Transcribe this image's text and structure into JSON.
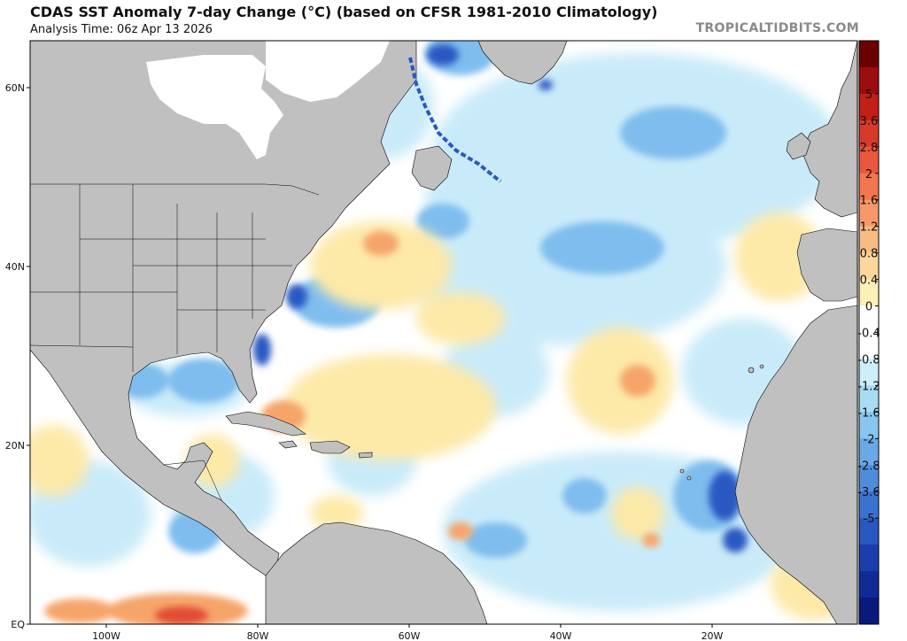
{
  "header": {
    "title": "CDAS SST Anomaly 7-day Change (°C) (based on CFSR 1981-2010 Climatology)",
    "analysis_time": "Analysis Time: 06z Apr 13 2026",
    "brand": "TROPICALTIDBITS.COM"
  },
  "axes": {
    "lat_labels": [
      {
        "text": "60N",
        "lat": 60
      },
      {
        "text": "40N",
        "lat": 40
      },
      {
        "text": "20N",
        "lat": 20
      },
      {
        "text": "EQ",
        "lat": 0
      }
    ],
    "lon_labels": [
      {
        "text": "100W",
        "lon": -100
      },
      {
        "text": "80W",
        "lon": -80
      },
      {
        "text": "60W",
        "lon": -60
      },
      {
        "text": "40W",
        "lon": -40
      },
      {
        "text": "20W",
        "lon": -20
      }
    ]
  },
  "colorbar": {
    "label_values": [
      "5",
      "3.6",
      "2.8",
      "2",
      "1.6",
      "1.2",
      "0.8",
      "0.4",
      "0",
      "-0.4",
      "-0.8",
      "-1.2",
      "-1.6",
      "-2",
      "-2.8",
      "-3.6",
      "-5"
    ],
    "bins": [
      {
        "color": "#6b0000"
      },
      {
        "color": "#9c0d0d"
      },
      {
        "color": "#c21f17"
      },
      {
        "color": "#d73a2b"
      },
      {
        "color": "#e9573f"
      },
      {
        "color": "#f2774f"
      },
      {
        "color": "#f6986a"
      },
      {
        "color": "#f9bb84"
      },
      {
        "color": "#fbd79c"
      },
      {
        "color": "#fdf0b6"
      },
      {
        "color": "#ffffff"
      },
      {
        "color": "#ffffff"
      },
      {
        "color": "#cdeefb"
      },
      {
        "color": "#a9dbf5"
      },
      {
        "color": "#88c5ef"
      },
      {
        "color": "#6aa9e6"
      },
      {
        "color": "#4f8ddb"
      },
      {
        "color": "#3a72d0"
      },
      {
        "color": "#2858c0"
      },
      {
        "color": "#1a3fac"
      },
      {
        "color": "#102b96"
      },
      {
        "color": "#091a7c"
      }
    ]
  },
  "colors": {
    "land": "#c0c0c0",
    "ice": "#ffffff",
    "ocean": "#ffffff",
    "border": "#000000"
  }
}
